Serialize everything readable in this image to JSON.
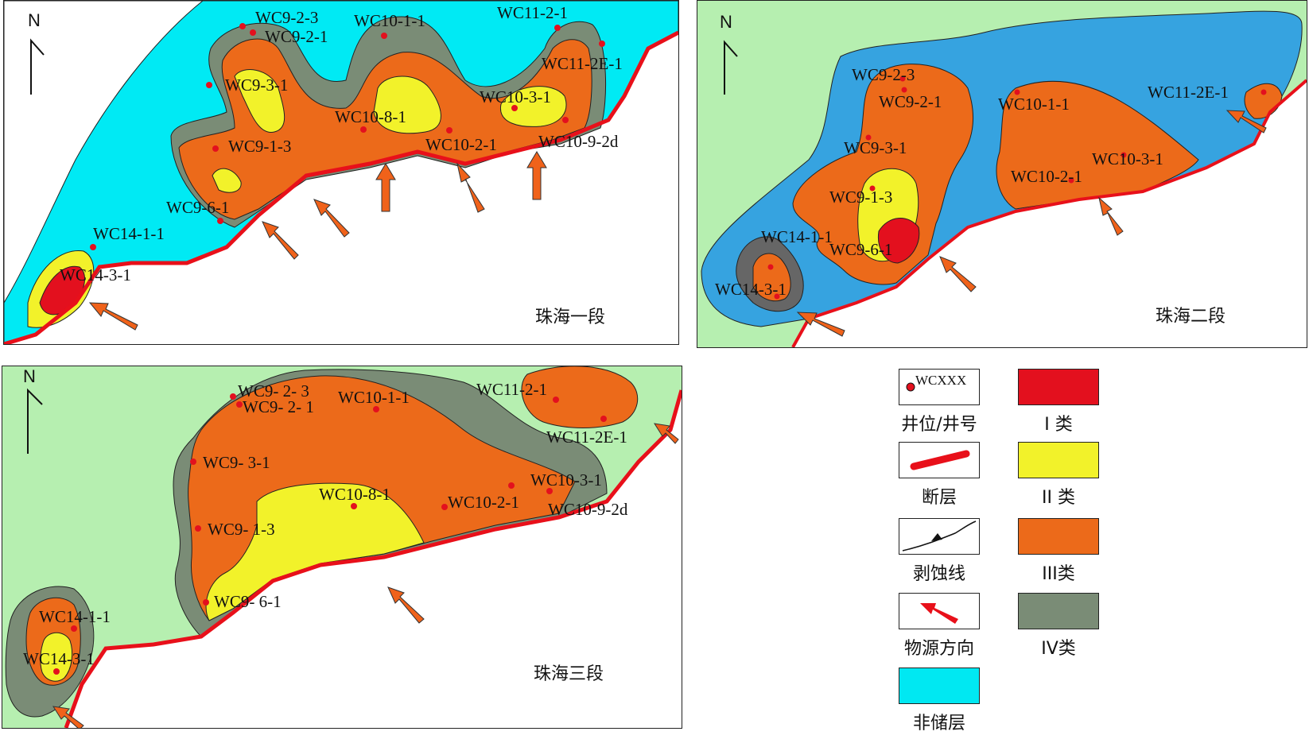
{
  "north_label": "N",
  "panels": [
    {
      "title": "珠海一段",
      "wells": [
        "WC9-2-3",
        "WC9-2-1",
        "WC10-1-1",
        "WC11-2-1",
        "WC11-2E-1",
        "WC9-3-1",
        "WC10-8-1",
        "WC10-3-1",
        "WC9-1-3",
        "WC10-2-1",
        "WC10-9-2d",
        "WC9-6-1",
        "WC14-1-1",
        "WC14-3-1"
      ]
    },
    {
      "title": "珠海二段",
      "wells": [
        "WC9-2-3",
        "WC9-2-1",
        "WC10-1-1",
        "WC11-2E-1",
        "WC9-3-1",
        "WC10-3-1",
        "WC10-2-1",
        "WC9-1-3",
        "WC14-1-1",
        "WC9-6-1",
        "WC14-3-1"
      ]
    },
    {
      "title": "珠海三段",
      "wells": [
        "WC9- 2- 3",
        "WC10-1-1",
        "WC9- 2- 1",
        "WC11-2-1",
        "WC11-2E-1",
        "WC9- 3-1",
        "WC10-3-1",
        "WC10-8-1",
        "WC10-2-1",
        "WC10-9-2d",
        "WC9- 1-3",
        "WC9- 6-1",
        "WC14-1-1",
        "WC14-3-1"
      ]
    }
  ],
  "legend": {
    "items": [
      {
        "label": "井位/井号",
        "symbol": "well",
        "sample_text": "WCXXX"
      },
      {
        "label": "I 类",
        "symbol": "fill",
        "color": "#e3101e"
      },
      {
        "label": "断层",
        "symbol": "fault",
        "color": "#e8101a"
      },
      {
        "label": "II 类",
        "symbol": "fill",
        "color": "#f2f22a"
      },
      {
        "label": "剥蚀线",
        "symbol": "erosion"
      },
      {
        "label": "III类",
        "symbol": "fill",
        "color": "#ec6a1a"
      },
      {
        "label": "物源方向",
        "symbol": "arrow",
        "color": "#e8101a"
      },
      {
        "label": "IV类",
        "symbol": "fill",
        "color": "#7a8c76"
      },
      {
        "label": "非储层",
        "symbol": "fill",
        "color": "#00e8f2"
      }
    ]
  },
  "colors": {
    "class_I": "#e3101e",
    "class_II": "#f2f22a",
    "class_III": "#ec6a1a",
    "class_IV": "#7a8c76",
    "non_reservoir_p1": "#00eaf4",
    "non_reservoir_p2": "#36a3e0",
    "background": "#b6efb0",
    "fault": "#e8101a",
    "source_arrow": "#f0621a"
  }
}
